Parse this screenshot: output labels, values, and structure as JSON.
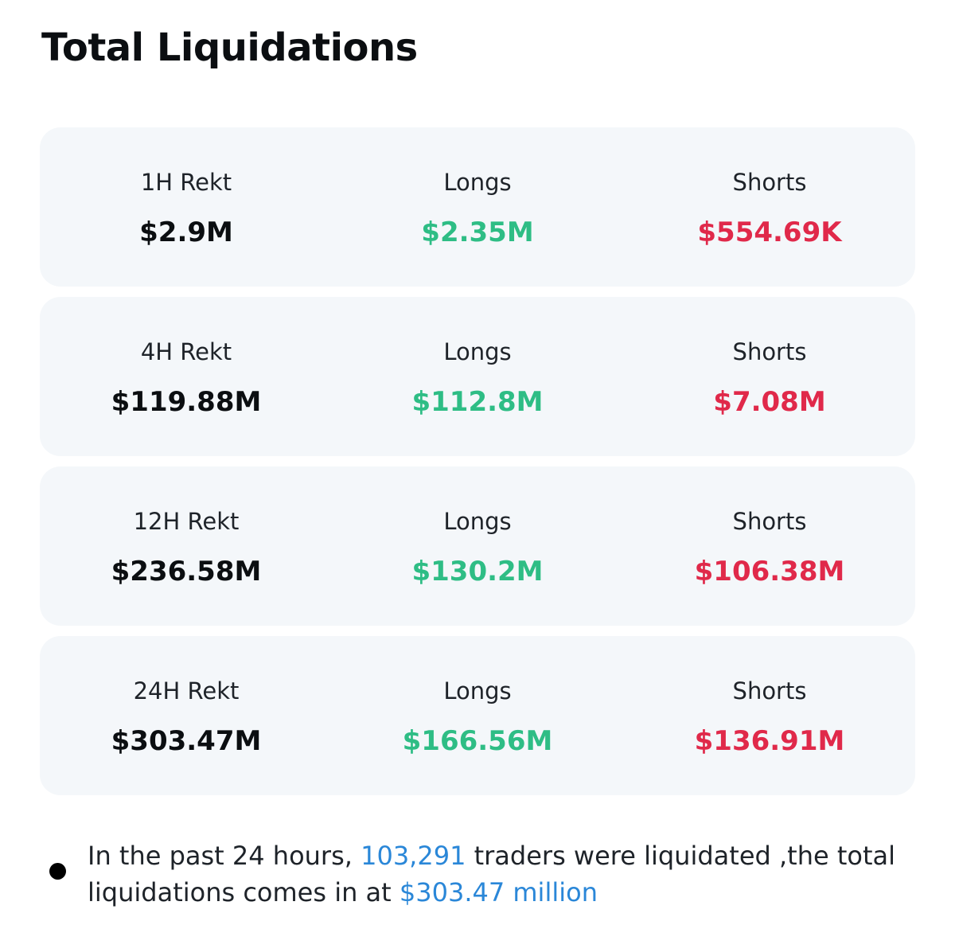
{
  "header": {
    "title": "Total Liquidations"
  },
  "colors": {
    "long": "#2ebd85",
    "short": "#e0294a",
    "link": "#2a87d8"
  },
  "cards": [
    {
      "period_label": "1H Rekt",
      "total": "$2.9M",
      "longs_label": "Longs",
      "longs": "$2.35M",
      "shorts_label": "Shorts",
      "shorts": "$554.69K"
    },
    {
      "period_label": "4H Rekt",
      "total": "$119.88M",
      "longs_label": "Longs",
      "longs": "$112.8M",
      "shorts_label": "Shorts",
      "shorts": "$7.08M"
    },
    {
      "period_label": "12H Rekt",
      "total": "$236.58M",
      "longs_label": "Longs",
      "longs": "$130.2M",
      "shorts_label": "Shorts",
      "shorts": "$106.38M"
    },
    {
      "period_label": "24H Rekt",
      "total": "$303.47M",
      "longs_label": "Longs",
      "longs": "$166.56M",
      "shorts_label": "Shorts",
      "shorts": "$136.91M"
    }
  ],
  "summary": {
    "prefix": "In the past 24 hours, ",
    "traders_count": "103,291",
    "middle": " traders were liquidated ,the total liquidations comes in at ",
    "amount": "$303.47 million"
  }
}
